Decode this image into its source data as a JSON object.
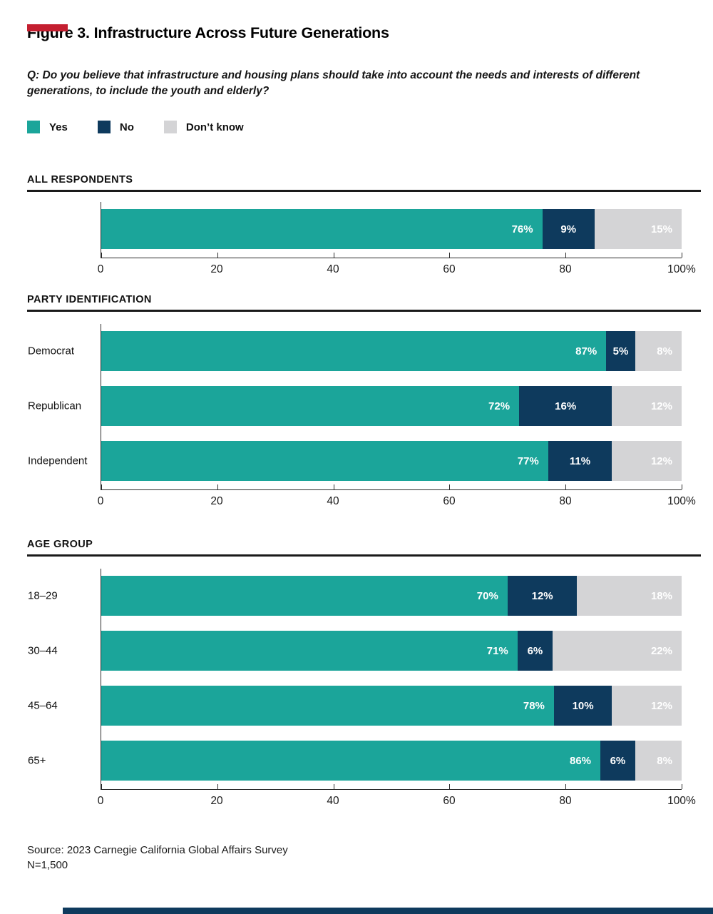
{
  "page": {
    "title": "Figure 3. Infrastructure Across Future Generations",
    "question_line1": "Q: Do you believe that infrastructure and housing plans should take into account the needs and interests of different",
    "question_line2": "generations, to include the youth and elderly?",
    "source_line1": "Source: 2023 Carnegie California Global Affairs Survey",
    "source_line2": "N=1,500"
  },
  "legend": {
    "items": [
      {
        "label": "Yes",
        "color": "#1BA59A"
      },
      {
        "label": "No",
        "color": "#0E3A5D"
      },
      {
        "label": "Don’t know",
        "color": "#D4D4D6"
      }
    ]
  },
  "colors": {
    "teal": "#1BA59A",
    "navy": "#0E3A5D",
    "gray": "#D4D4D6",
    "accent_red": "#C41F30",
    "accent_navy": "#0E3A5D",
    "rule_black": "#1A1A1A"
  },
  "chart_data": [
    {
      "type": "bar",
      "stacked": true,
      "orientation": "horizontal",
      "title": "ALL RESPONDENTS",
      "xlabel": "",
      "ylabel": "",
      "xlim": [
        0,
        100
      ],
      "unit": "%",
      "grid": false,
      "legend_position": "top",
      "xticks": [
        "0",
        "20",
        "40",
        "60",
        "80",
        "100%"
      ],
      "categories": [
        ""
      ],
      "series": [
        {
          "name": "Yes",
          "values": [
            76
          ]
        },
        {
          "name": "No",
          "values": [
            9
          ]
        },
        {
          "name": "Don't know",
          "values": [
            15
          ]
        }
      ]
    },
    {
      "type": "bar",
      "stacked": true,
      "orientation": "horizontal",
      "title": "PARTY IDENTIFICATION",
      "xlabel": "",
      "ylabel": "",
      "xlim": [
        0,
        100
      ],
      "unit": "%",
      "grid": false,
      "legend_position": "top",
      "xticks": [
        "0",
        "20",
        "40",
        "60",
        "80",
        "100%"
      ],
      "categories": [
        "Democrat",
        "Republican",
        "Independent"
      ],
      "series": [
        {
          "name": "Yes",
          "values": [
            87,
            72,
            77
          ]
        },
        {
          "name": "No",
          "values": [
            5,
            16,
            11
          ]
        },
        {
          "name": "Don't know",
          "values": [
            8,
            12,
            12
          ]
        }
      ]
    },
    {
      "type": "bar",
      "stacked": true,
      "orientation": "horizontal",
      "title": "AGE GROUP",
      "xlabel": "",
      "ylabel": "",
      "xlim": [
        0,
        100
      ],
      "unit": "%",
      "grid": false,
      "legend_position": "top",
      "xticks": [
        "0",
        "20",
        "40",
        "60",
        "80",
        "100%"
      ],
      "categories": [
        "18–29",
        "30–44",
        "45–64",
        "65+"
      ],
      "series": [
        {
          "name": "Yes",
          "values": [
            70,
            71,
            78,
            86
          ]
        },
        {
          "name": "No",
          "values": [
            12,
            6,
            10,
            6
          ]
        },
        {
          "name": "Don't know",
          "values": [
            18,
            22,
            12,
            8
          ]
        }
      ]
    }
  ]
}
